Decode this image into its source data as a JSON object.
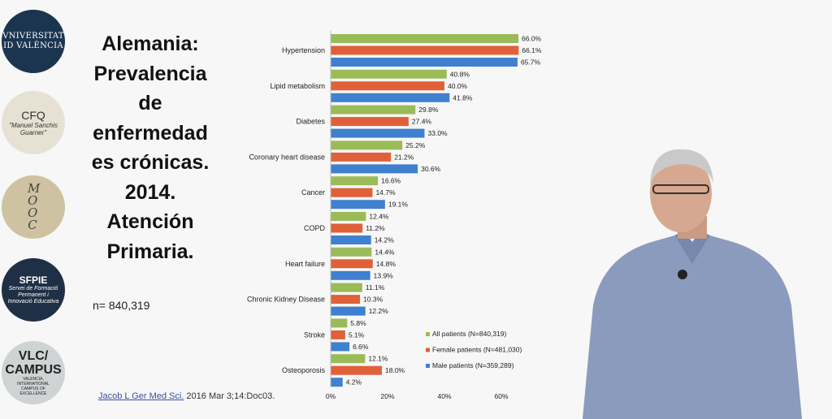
{
  "slide": {
    "title": "Alemania: Prevalencia de enfermedad es crónicas. 2014. Atención Primaria.",
    "sample_size": "n= 840,319",
    "citation_link": "Jacob L Ger Med Sci.",
    "citation_rest": " 2016 Mar 3;14:Doc03."
  },
  "logos": {
    "uv": [
      "VNIVERSITAT",
      "ID VALÈNCIA"
    ],
    "cfq": [
      "CFQ",
      "\"Manuel Sanchis Guarner\""
    ],
    "mooc": "MOOC",
    "sfpie": [
      "SFPIE",
      "Servei de Formació Permanent i Innovació Educativa"
    ],
    "vlc": [
      "VLC/ CAMPUS",
      "VALENCIA, INTERNATIONAL CAMPUS OF EXCELLENCE"
    ]
  },
  "chart_data": {
    "type": "bar",
    "orientation": "horizontal",
    "categories": [
      "Hypertension",
      "Lipid metabolism",
      "Diabetes",
      "Coronary heart disease",
      "Cancer",
      "COPD",
      "Heart failure",
      "Chronic Kidney Disease",
      "Stroke",
      "Osteoporosis"
    ],
    "series": [
      {
        "name": "All patients (N=840,319)",
        "color": "#9bbb59",
        "values": [
          66.0,
          40.8,
          29.8,
          25.2,
          16.6,
          12.4,
          14.4,
          11.1,
          5.8,
          12.1
        ]
      },
      {
        "name": "Female patients (N=481,030)",
        "color": "#e0603a",
        "values": [
          66.1,
          40.0,
          27.4,
          21.2,
          14.7,
          11.2,
          14.8,
          10.3,
          5.1,
          18.0
        ]
      },
      {
        "name": "Male patients (N=359,289)",
        "color": "#3f80cf",
        "values": [
          65.7,
          41.8,
          33.0,
          30.6,
          19.1,
          14.2,
          13.9,
          12.2,
          6.6,
          4.2
        ]
      }
    ],
    "value_labels": [
      [
        "66.0%",
        "40.8%",
        "29.8%",
        "25.2%",
        "16.6%",
        "12.4%",
        "14.4%",
        "11.1%",
        "5.8%",
        "12.1%"
      ],
      [
        "66.1%",
        "40.0%",
        "27.4%",
        "21.2%",
        "14.7%",
        "11.2%",
        "14.8%",
        "10.3%",
        "5.1%",
        "18.0%"
      ],
      [
        "65.7%",
        "41.8%",
        "33.0%",
        "30.6%",
        "19.1%",
        "14.2%",
        "13.9%",
        "12.2%",
        "6.6%",
        "4.2%"
      ]
    ],
    "xlim": [
      0,
      70
    ],
    "xticks": [
      0,
      20,
      40,
      60
    ],
    "xtick_labels": [
      "0%",
      "20%",
      "40%",
      "60%"
    ],
    "legend_position": "bottom-right",
    "grid": false
  }
}
